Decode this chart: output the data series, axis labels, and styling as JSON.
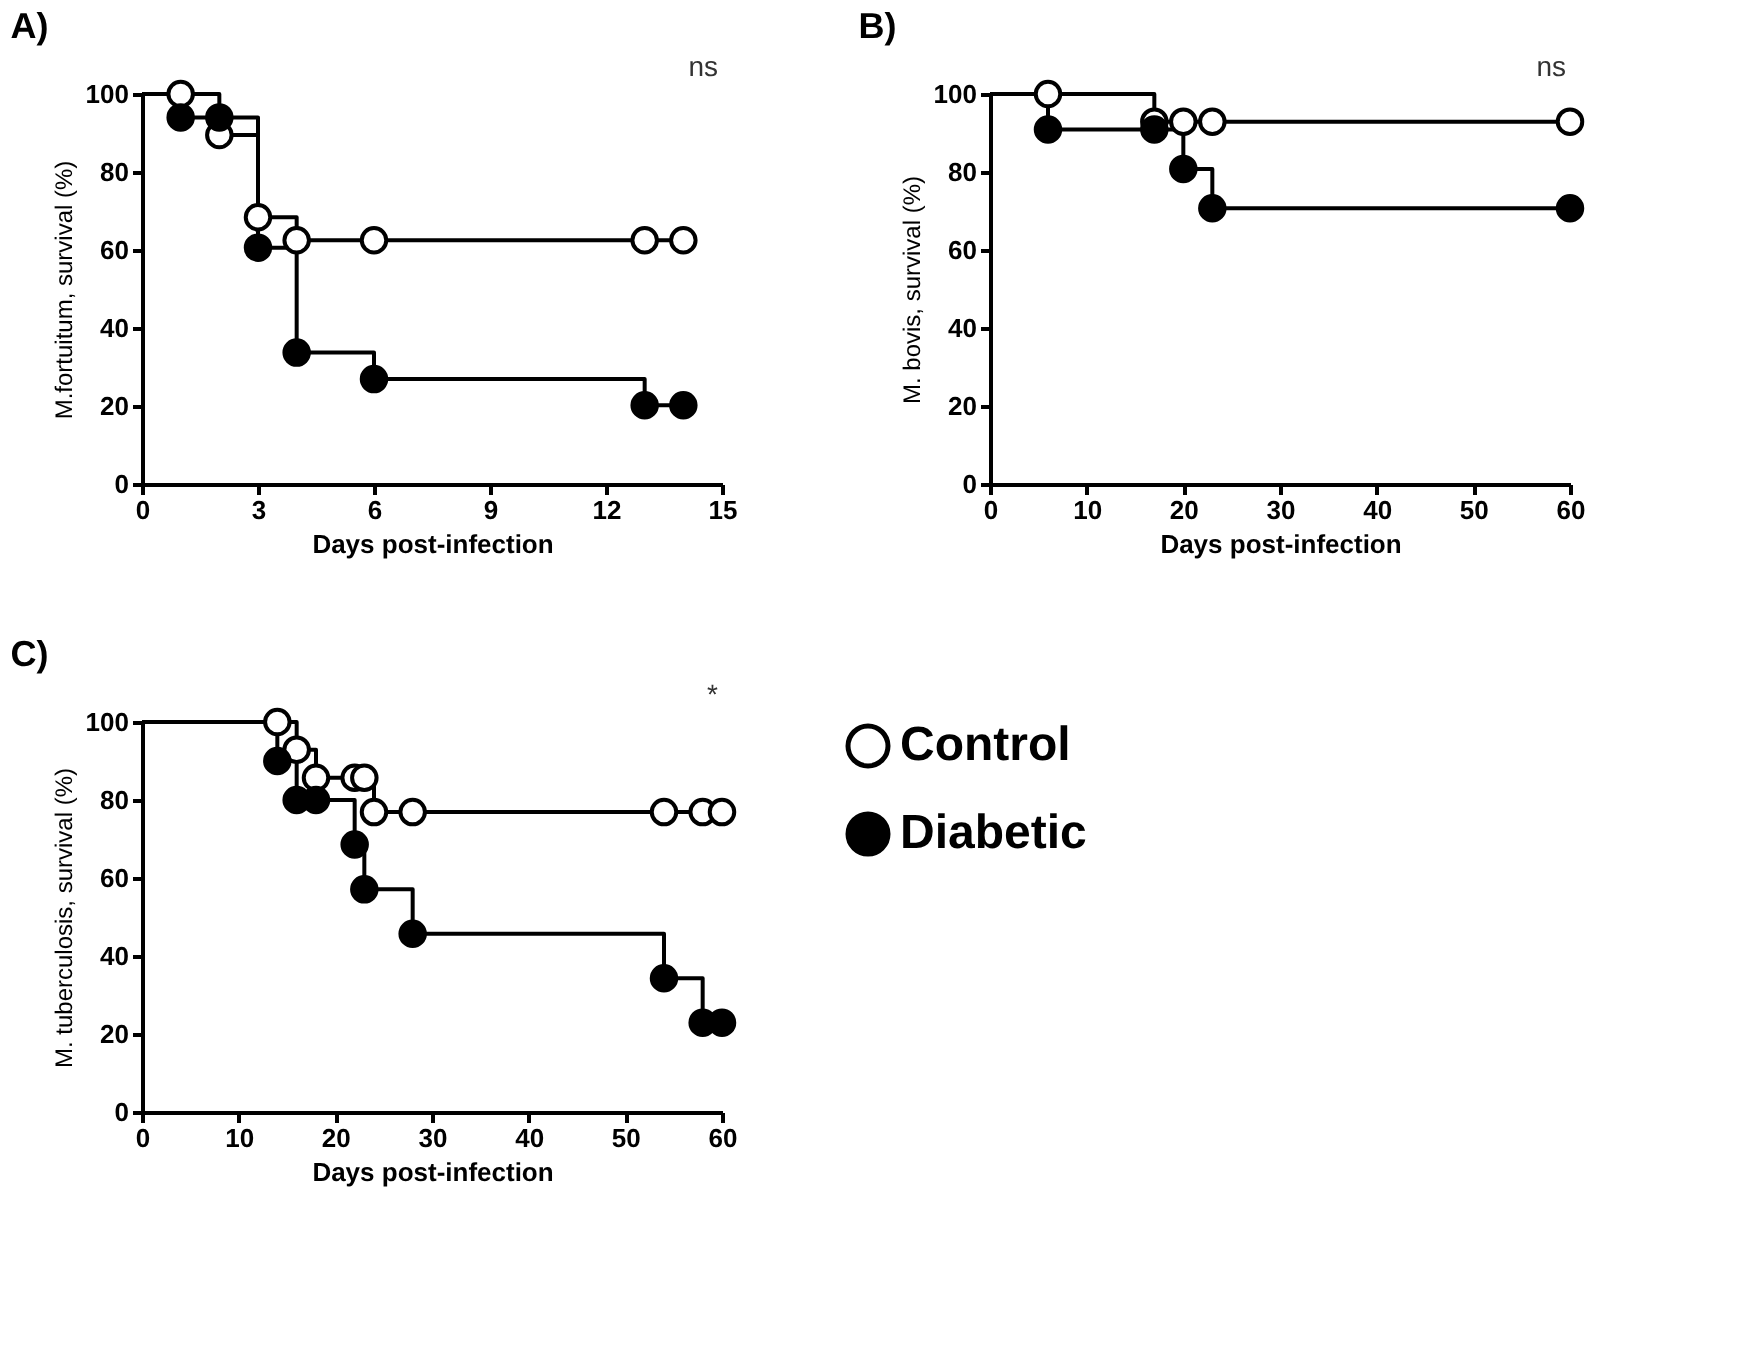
{
  "chart_data": [
    {
      "type": "step",
      "title": "A)",
      "xlabel": "Days post-infection",
      "ylabel": "M.fortuitum, survival (%)",
      "xlim": [
        0,
        15
      ],
      "xticks": [
        0,
        3,
        6,
        9,
        12,
        15
      ],
      "ylim": [
        0,
        100
      ],
      "yticks": [
        0,
        20,
        40,
        60,
        80,
        100
      ],
      "annotations": [
        "ns"
      ],
      "series": [
        {
          "color": "#000000",
          "x": [
            0,
            1,
            2,
            3,
            4,
            6,
            13,
            14
          ],
          "values": [
            100,
            100,
            89.5,
            68.4,
            62.5,
            62.5,
            62.5,
            62.5
          ]
        },
        {
          "color": "#000000",
          "x": [
            0,
            1,
            2,
            3,
            4,
            6,
            13,
            14
          ],
          "values": [
            100,
            94,
            94,
            60.6,
            33.7,
            26.9,
            20.2,
            20.2
          ]
        },
        {
          "type": "scatter",
          "color": "#ffffff",
          "marker": "circle",
          "x": [
            1,
            2,
            3,
            4,
            6,
            13,
            14
          ],
          "values": [
            100,
            89.5,
            68.4,
            62.5,
            62.5,
            62.5,
            62.5
          ]
        },
        {
          "type": "scatter",
          "color": "#000000",
          "marker": "circle",
          "x": [
            1,
            2,
            3,
            4,
            6,
            13,
            14
          ],
          "values": [
            94,
            94,
            60.6,
            33.7,
            26.9,
            20.2,
            20.2
          ]
        }
      ]
    },
    {
      "type": "step",
      "title": "B)",
      "xlabel": "Days post-infection",
      "ylabel": "M. bovis, survival (%)",
      "xlim": [
        0,
        60
      ],
      "xticks": [
        0,
        10,
        20,
        30,
        40,
        50,
        60
      ],
      "ylim": [
        0,
        100
      ],
      "yticks": [
        0,
        20,
        40,
        60,
        80,
        100
      ],
      "annotations": [
        "ns"
      ],
      "series": [
        {
          "color": "#000000",
          "x": [
            0,
            6,
            17,
            20,
            23,
            60
          ],
          "values": [
            100,
            100,
            92.9,
            92.9,
            92.9,
            92.9
          ]
        },
        {
          "color": "#000000",
          "x": [
            0,
            6,
            17,
            20,
            23,
            60
          ],
          "values": [
            100,
            90.9,
            90.9,
            80.8,
            70.7,
            70.7
          ]
        },
        {
          "type": "scatter",
          "color": "#ffffff",
          "marker": "circle",
          "x": [
            6,
            17,
            20,
            23,
            60
          ],
          "values": [
            100,
            92.9,
            92.9,
            92.9,
            92.9
          ]
        },
        {
          "type": "scatter",
          "color": "#000000",
          "marker": "circle",
          "x": [
            6,
            17,
            20,
            23,
            60
          ],
          "values": [
            90.9,
            90.9,
            80.8,
            70.7,
            70.7
          ]
        }
      ]
    },
    {
      "type": "step",
      "title": "C)",
      "xlabel": "Days post-infection",
      "ylabel": "M. tuberculosis, survival (%)",
      "xlim": [
        0,
        60
      ],
      "xticks": [
        0,
        10,
        20,
        30,
        40,
        50,
        60
      ],
      "ylim": [
        0,
        100
      ],
      "yticks": [
        0,
        20,
        40,
        60,
        80,
        100
      ],
      "legend": "right",
      "annotations": [
        "*"
      ],
      "series": [
        {
          "color": "#000000",
          "x": [
            0,
            14,
            16,
            18,
            22,
            23,
            24,
            28,
            54,
            58,
            60
          ],
          "values": [
            100,
            100,
            92.9,
            85.7,
            85.7,
            85.7,
            76.9,
            76.9,
            76.9,
            76.9,
            76.9
          ]
        },
        {
          "color": "#000000",
          "x": [
            0,
            14,
            16,
            18,
            22,
            23,
            28,
            54,
            58,
            60
          ],
          "values": [
            100,
            90,
            80,
            80,
            68.6,
            57.1,
            45.7,
            34.3,
            22.9,
            22.9
          ]
        },
        {
          "type": "scatter",
          "name": "Control",
          "color": "#ffffff",
          "marker": "circle",
          "x": [
            14,
            16,
            18,
            22,
            23,
            24,
            28,
            54,
            58,
            60
          ],
          "values": [
            100,
            92.9,
            85.7,
            85.7,
            85.7,
            76.9,
            76.9,
            76.9,
            76.9,
            76.9
          ]
        },
        {
          "type": "scatter",
          "name": "Diabetic",
          "color": "#000000",
          "marker": "circle",
          "x": [
            14,
            16,
            18,
            22,
            23,
            28,
            54,
            58,
            60
          ],
          "values": [
            90,
            80,
            80,
            68.6,
            57.1,
            45.7,
            34.3,
            22.9,
            22.9
          ]
        }
      ]
    }
  ]
}
